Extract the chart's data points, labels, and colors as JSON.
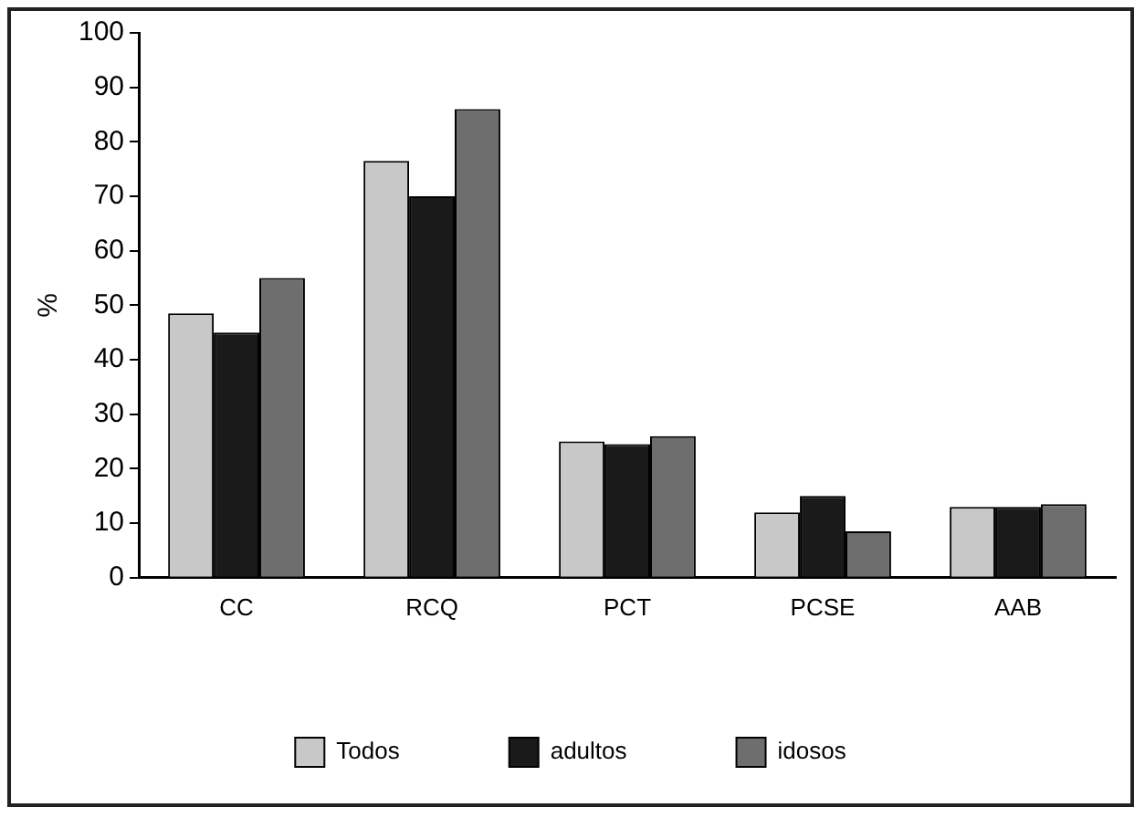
{
  "chart_data": {
    "type": "bar",
    "ylabel": "%",
    "categories": [
      "CC",
      "RCQ",
      "PCT",
      "PCSE",
      "AAB"
    ],
    "series": [
      {
        "name": "Todos",
        "color": "#c8c8c8",
        "values": [
          48.5,
          76.5,
          25,
          12,
          13
        ]
      },
      {
        "name": "adultos",
        "color": "#1a1a1a",
        "values": [
          45,
          70,
          24.5,
          15,
          13
        ]
      },
      {
        "name": "idosos",
        "color": "#6e6e6e",
        "values": [
          55,
          86,
          26,
          8.5,
          13.5
        ]
      }
    ],
    "ylim": [
      0,
      100
    ],
    "yticks": [
      0,
      10,
      20,
      30,
      40,
      50,
      60,
      70,
      80,
      90,
      100
    ],
    "grid": false,
    "legend": "bottom"
  }
}
